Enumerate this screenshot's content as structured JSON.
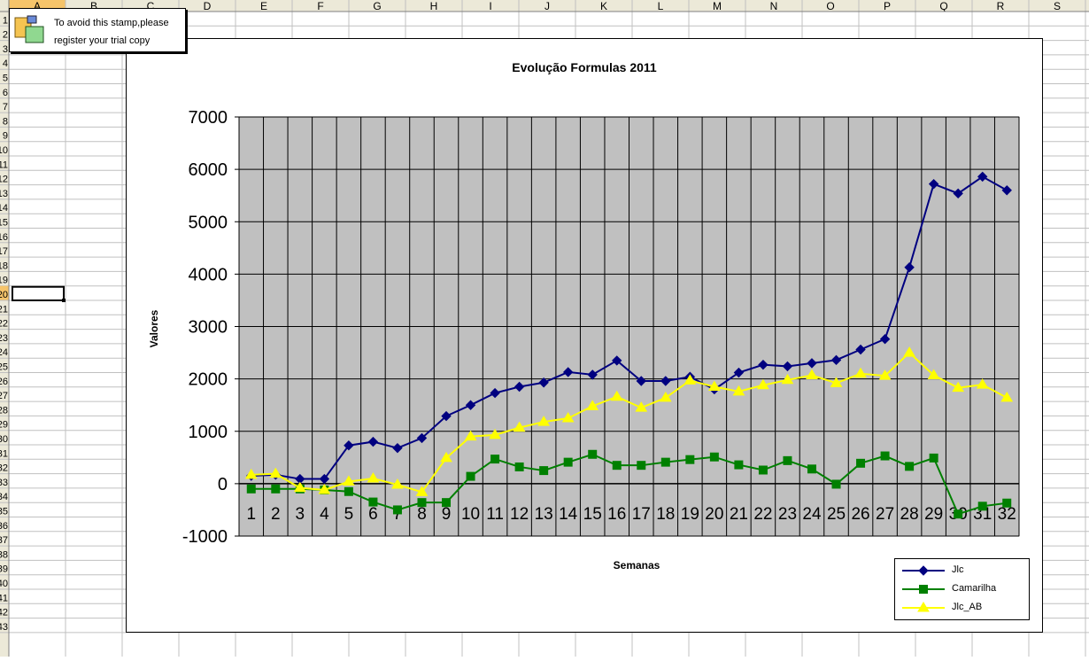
{
  "spreadsheet": {
    "columns": [
      "A",
      "B",
      "C",
      "D",
      "E",
      "F",
      "G",
      "H",
      "I",
      "J",
      "K",
      "L",
      "M",
      "N",
      "O",
      "P",
      "Q",
      "R",
      "S"
    ],
    "rows": [
      "1",
      "2",
      "3",
      "4",
      "5",
      "6",
      "7",
      "8",
      "9",
      "10",
      "11",
      "12",
      "13",
      "14",
      "15",
      "16",
      "17",
      "18",
      "19",
      "20",
      "21",
      "22",
      "23",
      "24",
      "25",
      "26",
      "27",
      "28",
      "29",
      "30",
      "31",
      "32",
      "33",
      "34",
      "35",
      "36",
      "37",
      "38",
      "39",
      "40",
      "41",
      "42",
      "43"
    ],
    "selected_cell": "A20"
  },
  "stamp": {
    "line1": "To avoid this stamp,please",
    "line2": "register your trial copy"
  },
  "chart_data": {
    "type": "line",
    "title": "Evolução Formulas 2011",
    "xlabel": "Semanas",
    "ylabel": "Valores",
    "ylim": [
      -1000,
      7000
    ],
    "yticks": [
      7000,
      6000,
      5000,
      4000,
      3000,
      2000,
      1000,
      0,
      -1000
    ],
    "categories": [
      "1",
      "2",
      "3",
      "4",
      "5",
      "6",
      "7",
      "8",
      "9",
      "10",
      "11",
      "12",
      "13",
      "14",
      "15",
      "16",
      "17",
      "18",
      "19",
      "20",
      "21",
      "22",
      "23",
      "24",
      "25",
      "26",
      "27",
      "28",
      "29",
      "30",
      "31",
      "32"
    ],
    "grid": true,
    "plot_background": "#c0c0c0",
    "legend_position": "bottom-right",
    "series": [
      {
        "name": "Jlc",
        "color": "#000080",
        "marker": "diamond",
        "values": [
          150,
          170,
          90,
          90,
          730,
          800,
          680,
          870,
          1290,
          1500,
          1730,
          1850,
          1930,
          2130,
          2080,
          2350,
          1960,
          1960,
          2040,
          1800,
          2120,
          2270,
          2240,
          2300,
          2360,
          2560,
          2760,
          4130,
          5720,
          5540,
          5860,
          5600
        ]
      },
      {
        "name": "Camarilha",
        "color": "#008000",
        "marker": "square",
        "values": [
          -100,
          -100,
          -100,
          -120,
          -150,
          -350,
          -500,
          -360,
          -360,
          140,
          470,
          320,
          250,
          410,
          560,
          350,
          350,
          410,
          460,
          510,
          360,
          260,
          440,
          280,
          -10,
          390,
          530,
          330,
          490,
          -580,
          -430,
          -370
        ]
      },
      {
        "name": "Jlc_AB",
        "color": "#ffff00",
        "marker": "triangle",
        "values": [
          170,
          190,
          -80,
          -120,
          40,
          100,
          -20,
          -160,
          490,
          900,
          930,
          1070,
          1180,
          1250,
          1480,
          1660,
          1450,
          1640,
          1970,
          1850,
          1760,
          1880,
          1980,
          2070,
          1920,
          2100,
          2060,
          2500,
          2070,
          1830,
          1890,
          1640
        ]
      }
    ]
  }
}
